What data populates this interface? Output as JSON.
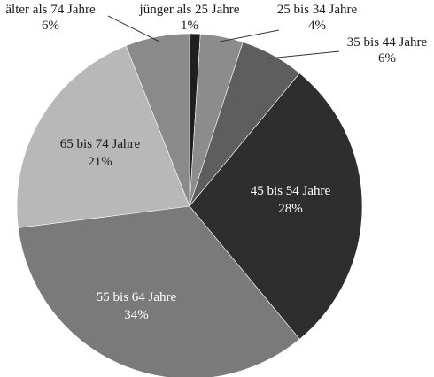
{
  "chart_data": {
    "type": "pie",
    "title": "",
    "slices": [
      {
        "label": "jünger als 25 Jahre",
        "value_label": "1%",
        "value": 1,
        "color": "#1f1f1f"
      },
      {
        "label": "25 bis 34 Jahre",
        "value_label": "4%",
        "value": 4,
        "color": "#8c8c8c"
      },
      {
        "label": "35 bis 44 Jahre",
        "value_label": "6%",
        "value": 6,
        "color": "#5e5e5e"
      },
      {
        "label": "45 bis 54 Jahre",
        "value_label": "28%",
        "value": 28,
        "color": "#2e2e2e"
      },
      {
        "label": "55 bis 64 Jahre",
        "value_label": "34%",
        "value": 34,
        "color": "#7a7a7a"
      },
      {
        "label": "65 bis 74 Jahre",
        "value_label": "21%",
        "value": 21,
        "color": "#b8b8b8"
      },
      {
        "label": "älter als 74 Jahre",
        "value_label": "6%",
        "value": 6,
        "color": "#8a8a8a"
      }
    ]
  }
}
